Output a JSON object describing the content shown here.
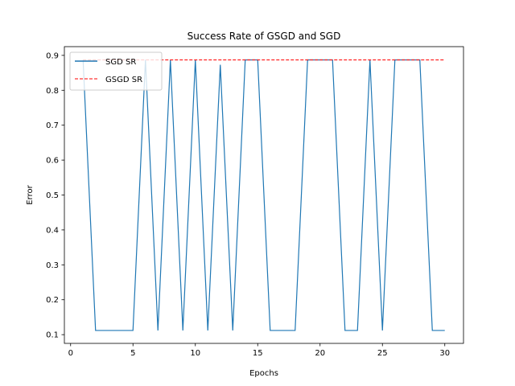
{
  "chart_data": {
    "type": "line",
    "title": "Success Rate of GSGD and SGD",
    "xlabel": "Epochs",
    "ylabel": "Error",
    "xlim": [
      -0.5,
      31.5
    ],
    "ylim": [
      0.075,
      0.925
    ],
    "xticks": [
      0,
      5,
      10,
      15,
      20,
      25,
      30
    ],
    "yticks": [
      0.1,
      0.2,
      0.3,
      0.4,
      0.5,
      0.6,
      0.7,
      0.8,
      0.9
    ],
    "grid": false,
    "legend_position": "top-left",
    "series": [
      {
        "name": "SGD SR",
        "color": "#1f77b4",
        "style": "solid",
        "x": [
          1,
          2,
          3,
          4,
          5,
          6,
          7,
          8,
          9,
          10,
          11,
          12,
          13,
          14,
          15,
          16,
          17,
          18,
          19,
          20,
          21,
          22,
          23,
          24,
          25,
          26,
          27,
          28,
          29,
          30
        ],
        "y": [
          0.887,
          0.112,
          0.112,
          0.112,
          0.112,
          0.887,
          0.112,
          0.887,
          0.112,
          0.887,
          0.112,
          0.873,
          0.112,
          0.887,
          0.887,
          0.112,
          0.112,
          0.112,
          0.887,
          0.887,
          0.887,
          0.112,
          0.112,
          0.887,
          0.112,
          0.887,
          0.887,
          0.887,
          0.112,
          0.112
        ]
      },
      {
        "name": "GSGD SR",
        "color": "#ff0000",
        "style": "dashed",
        "x": [
          1,
          30
        ],
        "y": [
          0.887,
          0.887
        ]
      }
    ]
  }
}
